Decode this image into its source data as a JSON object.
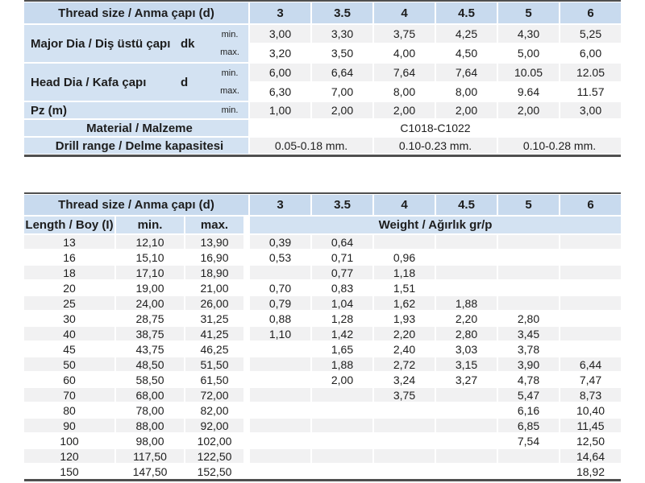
{
  "colors": {
    "header_blue": "#c8daee",
    "label_blue": "#d3e2f2",
    "stripe_gray": "#f1f1f2",
    "border_dark": "#4f4f4f",
    "text": "#1d1d1d"
  },
  "table1": {
    "header_label": "Thread size / Anma çapı (d)",
    "sizes": [
      "3",
      "3.5",
      "4",
      "4.5",
      "5",
      "6"
    ],
    "groups": [
      {
        "name": "Major Dia / Diş üstü çapı",
        "code": "dk",
        "rows": [
          {
            "limit": "min.",
            "values": [
              "3,00",
              "3,30",
              "3,75",
              "4,25",
              "4,30",
              "5,25"
            ]
          },
          {
            "limit": "max.",
            "values": [
              "3,20",
              "3,50",
              "4,00",
              "4,50",
              "5,00",
              "6,00"
            ]
          }
        ]
      },
      {
        "name": "Head Dia / Kafa çapı",
        "code": "d",
        "rows": [
          {
            "limit": "min.",
            "values": [
              "6,00",
              "6,64",
              "7,64",
              "7,64",
              "10.05",
              "12.05"
            ]
          },
          {
            "limit": "max.",
            "values": [
              "6,30",
              "7,00",
              "8,00",
              "8,00",
              "9.64",
              "11.57"
            ]
          }
        ]
      },
      {
        "name": "Pz (m)",
        "code": "",
        "rows": [
          {
            "limit": "min.",
            "values": [
              "1,00",
              "2,00",
              "2,00",
              "2,00",
              "2,00",
              "3,00"
            ]
          }
        ]
      }
    ],
    "material": {
      "label": "Material / Malzeme",
      "value": "C1018-C1022"
    },
    "drill": {
      "label": "Drill range / Delme kapasitesi",
      "values": [
        "0.05-0.18 mm.",
        "0.10-0.23 mm.",
        "0.10-0.28 mm."
      ]
    }
  },
  "table2": {
    "header_label": "Thread size / Anma çapı (d)",
    "sizes": [
      "3",
      "3.5",
      "4",
      "4.5",
      "5",
      "6"
    ],
    "length_label": "Length / Boy (I)",
    "min_label": "min.",
    "max_label": "max.",
    "weight_label": "Weight / Ağırlık gr/p",
    "rows": [
      {
        "length": "13",
        "min": "12,10",
        "max": "13,90",
        "weights": [
          "0,39",
          "0,64",
          "",
          "",
          "",
          ""
        ]
      },
      {
        "length": "16",
        "min": "15,10",
        "max": "16,90",
        "weights": [
          "0,53",
          "0,71",
          "0,96",
          "",
          "",
          ""
        ]
      },
      {
        "length": "18",
        "min": "17,10",
        "max": "18,90",
        "weights": [
          "",
          "0,77",
          "1,18",
          "",
          "",
          ""
        ]
      },
      {
        "length": "20",
        "min": "19,00",
        "max": "21,00",
        "weights": [
          "0,70",
          "0,83",
          "1,51",
          "",
          "",
          ""
        ]
      },
      {
        "length": "25",
        "min": "24,00",
        "max": "26,00",
        "weights": [
          "0,79",
          "1,04",
          "1,62",
          "1,88",
          "",
          ""
        ]
      },
      {
        "length": "30",
        "min": "28,75",
        "max": "31,25",
        "weights": [
          "0,88",
          "1,28",
          "1,93",
          "2,20",
          "2,80",
          ""
        ]
      },
      {
        "length": "40",
        "min": "38,75",
        "max": "41,25",
        "weights": [
          "1,10",
          "1,42",
          "2,20",
          "2,80",
          "3,45",
          ""
        ]
      },
      {
        "length": "45",
        "min": "43,75",
        "max": "46,25",
        "weights": [
          "",
          "1,65",
          "2,40",
          "3,03",
          "3,78",
          ""
        ]
      },
      {
        "length": "50",
        "min": "48,50",
        "max": "51,50",
        "weights": [
          "",
          "1,88",
          "2,72",
          "3,15",
          "3,90",
          "6,44"
        ]
      },
      {
        "length": "60",
        "min": "58,50",
        "max": "61,50",
        "weights": [
          "",
          "2,00",
          "3,24",
          "3,27",
          "4,78",
          "7,47"
        ]
      },
      {
        "length": "70",
        "min": "68,00",
        "max": "72,00",
        "weights": [
          "",
          "",
          "3,75",
          "",
          "5,47",
          "8,73"
        ]
      },
      {
        "length": "80",
        "min": "78,00",
        "max": "82,00",
        "weights": [
          "",
          "",
          "",
          "",
          "6,16",
          "10,40"
        ]
      },
      {
        "length": "90",
        "min": "88,00",
        "max": "92,00",
        "weights": [
          "",
          "",
          "",
          "",
          "6,85",
          "11,45"
        ]
      },
      {
        "length": "100",
        "min": "98,00",
        "max": "102,00",
        "weights": [
          "",
          "",
          "",
          "",
          "7,54",
          "12,50"
        ]
      },
      {
        "length": "120",
        "min": "117,50",
        "max": "122,50",
        "weights": [
          "",
          "",
          "",
          "",
          "",
          "14,64"
        ]
      },
      {
        "length": "150",
        "min": "147,50",
        "max": "152,50",
        "weights": [
          "",
          "",
          "",
          "",
          "",
          "18,92"
        ]
      }
    ]
  }
}
